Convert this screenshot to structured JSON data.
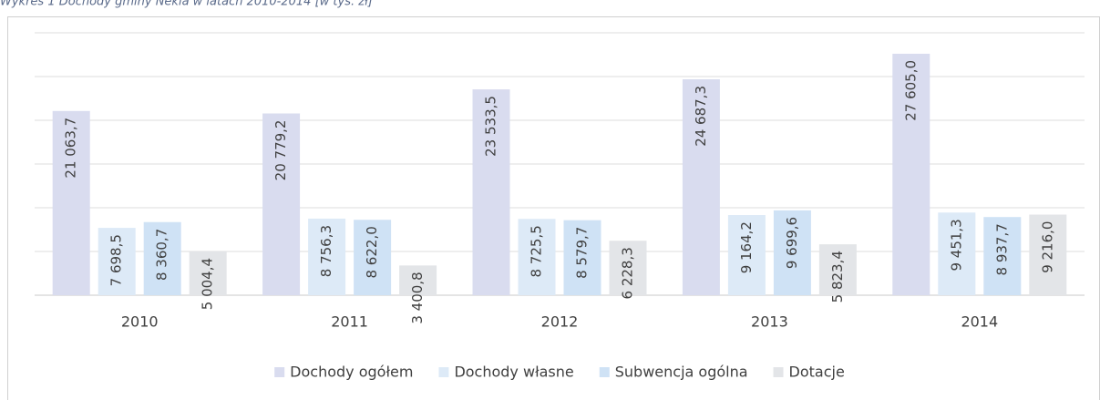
{
  "chart_data": {
    "type": "bar",
    "title": "Wykres 1 Dochody gminy Nekla w latach 2010-2014 [w tys. zł]",
    "categories": [
      "2010",
      "2011",
      "2012",
      "2013",
      "2014"
    ],
    "series": [
      {
        "name": "Dochody ogółem",
        "color": "#d9dcef",
        "values": [
          21063.7,
          20779.2,
          23533.5,
          24687.3,
          27605.0
        ],
        "value_labels": [
          "21 063,7",
          "20 779,2",
          "23 533,5",
          "24 687,3",
          "27 605,0"
        ]
      },
      {
        "name": "Dochody własne",
        "color": "#ddeaf7",
        "values": [
          7698.5,
          8756.3,
          8725.5,
          9164.2,
          9451.3
        ],
        "value_labels": [
          "7 698,5",
          "8 756,3",
          "8 725,5",
          "9 164,2",
          "9 451,3"
        ]
      },
      {
        "name": "Subwencja ogólna",
        "color": "#cfe2f5",
        "values": [
          8360.7,
          8622.0,
          8579.7,
          9699.6,
          8937.7
        ],
        "value_labels": [
          "8 360,7",
          "8 622,0",
          "8 579,7",
          "9 699,6",
          "8 937,7"
        ]
      },
      {
        "name": "Dotacje",
        "color": "#e3e5e8",
        "values": [
          5004.4,
          3400.8,
          6228.3,
          5823.4,
          9216.0
        ],
        "value_labels": [
          "5 004,4",
          "3 400,8",
          "6 228,3",
          "5 823,4",
          "9 216,0"
        ]
      }
    ],
    "ylim": [
      0,
      30000
    ],
    "yticks": [
      0,
      5000,
      10000,
      15000,
      20000,
      25000,
      30000
    ],
    "grid": true
  }
}
